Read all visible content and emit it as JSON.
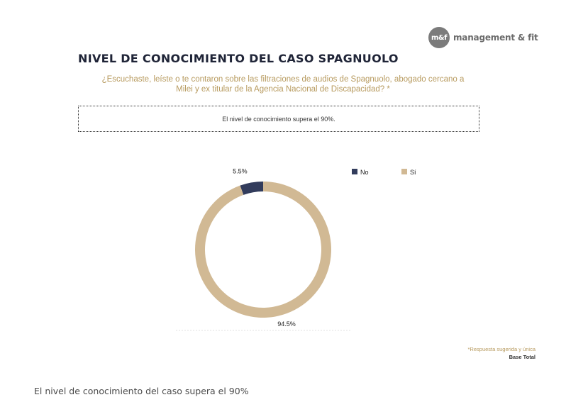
{
  "logo": {
    "badge": "m&f",
    "text": "management & fit"
  },
  "title": "NIVEL DE CONOCIMIENTO DEL CASO SPAGNUOLO",
  "question_line1": "¿Escuchaste, leíste o te contaron sobre las filtraciones de audios de Spagnuolo, abogado cercano a",
  "question_line2": "Milei y ex titular de la Agencia Nacional de Discapacidad? *",
  "note": "El nivel de conocimiento supera el 90%.",
  "chart_data": {
    "type": "pie",
    "donut": true,
    "title": "",
    "legend_position": "top-right",
    "series": [
      {
        "name": "No",
        "value": 5.5,
        "label": "5.5%",
        "color": "#323c5c"
      },
      {
        "name": "Sí",
        "value": 94.5,
        "label": "94.5%",
        "color": "#d1b994"
      }
    ]
  },
  "footnote": {
    "line1": "*Respuesta sugerida y única",
    "line2": "Base Total"
  },
  "caption": "El nivel de conocimiento del caso supera el 90%"
}
